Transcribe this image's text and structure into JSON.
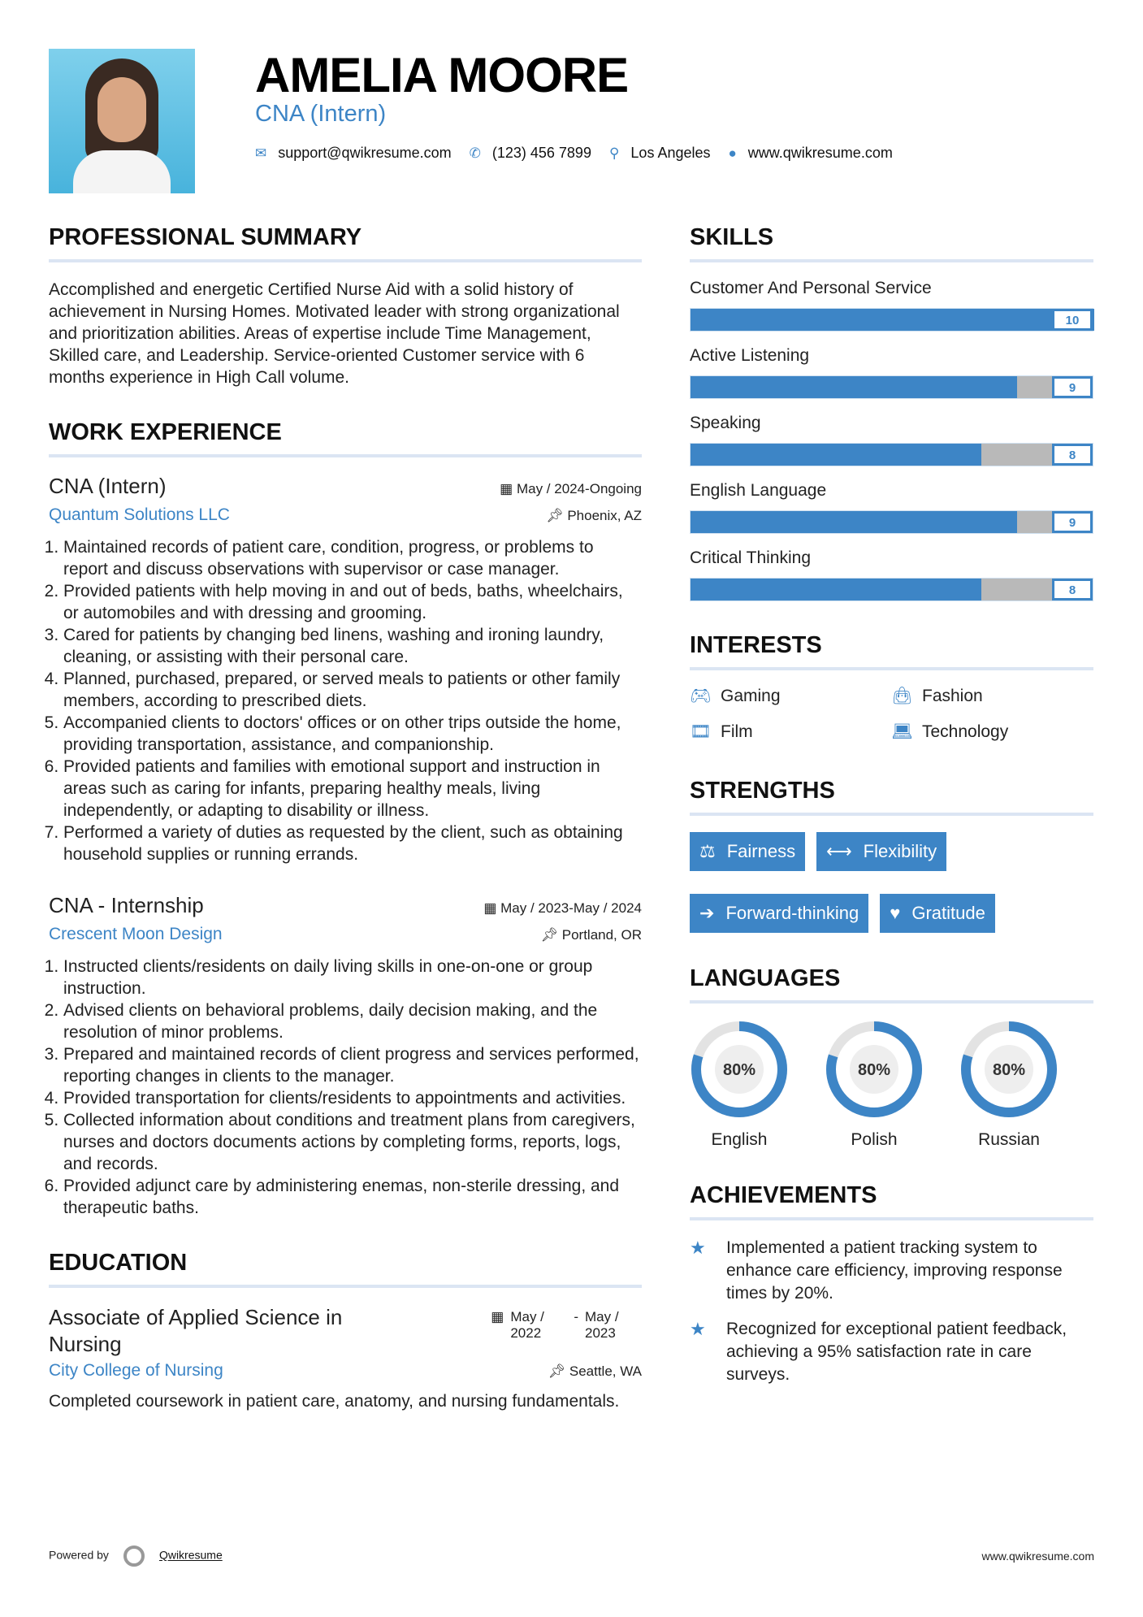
{
  "header": {
    "name": "AMELIA MOORE",
    "role": "CNA (Intern)",
    "email": "support@qwikresume.com",
    "phone": "(123) 456 7899",
    "location": "Los Angeles",
    "website": "www.qwikresume.com"
  },
  "summary": {
    "title": "PROFESSIONAL SUMMARY",
    "text": "Accomplished and energetic Certified Nurse Aid with a solid history of achievement in Nursing Homes. Motivated leader with strong organizational and prioritization abilities. Areas of expertise include Time Management, Skilled care, and Leadership. Service-oriented Customer service with 6 months experience in High Call volume."
  },
  "work": {
    "title": "WORK EXPERIENCE",
    "jobs": [
      {
        "title": "CNA (Intern)",
        "date": "May / 2024-Ongoing",
        "company": "Quantum Solutions LLC",
        "location": "Phoenix, AZ",
        "items": [
          "Maintained records of patient care, condition, progress, or problems to report and discuss observations with supervisor or case manager.",
          "Provided patients with help moving in and out of beds, baths, wheelchairs, or automobiles and with dressing and grooming.",
          "Cared for patients by changing bed linens, washing and ironing laundry, cleaning, or assisting with their personal care.",
          "Planned, purchased, prepared, or served meals to patients or other family members, according to prescribed diets.",
          "Accompanied clients to doctors' offices or on other trips outside the home, providing transportation, assistance, and companionship.",
          "Provided patients and families with emotional support and instruction in areas such as caring for infants, preparing healthy meals, living independently, or adapting to disability or illness.",
          "Performed a variety of duties as requested by the client, such as obtaining household supplies or running errands."
        ]
      },
      {
        "title": "CNA - Internship",
        "date": "May / 2023-May / 2024",
        "company": "Crescent Moon Design",
        "location": "Portland, OR",
        "items": [
          "Instructed clients/residents on daily living skills in one-on-one or group instruction.",
          "Advised clients on behavioral problems, daily decision making, and the resolution of minor problems.",
          "Prepared and maintained records of client progress and services performed, reporting changes in clients to the manager.",
          "Provided transportation for clients/residents to appointments and activities.",
          "Collected information about conditions and treatment plans from caregivers, nurses and doctors documents actions by completing forms, reports, logs, and records.",
          "Provided adjunct care by administering enemas, non-sterile dressing, and therapeutic baths."
        ]
      }
    ]
  },
  "education": {
    "title": "EDUCATION",
    "degree": "Associate of Applied Science in Nursing",
    "start": "May / 2022",
    "end": "May / 2023",
    "school": "City College of Nursing",
    "location": "Seattle, WA",
    "text": "Completed coursework in patient care, anatomy, and nursing fundamentals."
  },
  "skills": {
    "title": "SKILLS",
    "max": 10,
    "items": [
      {
        "name": "Customer And Personal Service",
        "level": 10
      },
      {
        "name": "Active Listening",
        "level": 9
      },
      {
        "name": "Speaking",
        "level": 8
      },
      {
        "name": "English Language",
        "level": 9
      },
      {
        "name": "Critical Thinking",
        "level": 8
      }
    ]
  },
  "interests": {
    "title": "INTERESTS",
    "items": [
      {
        "label": "Gaming",
        "icon": "gamepad-icon"
      },
      {
        "label": "Fashion",
        "icon": "shopping-bag-icon"
      },
      {
        "label": "Film",
        "icon": "film-icon"
      },
      {
        "label": "Technology",
        "icon": "laptop-icon"
      }
    ]
  },
  "strengths": {
    "title": "STRENGTHS",
    "items": [
      {
        "label": "Fairness",
        "icon": "balance-scale-icon"
      },
      {
        "label": "Flexibility",
        "icon": "arrows-h-icon"
      },
      {
        "label": "Forward-thinking",
        "icon": "arrow-right-icon"
      },
      {
        "label": "Gratitude",
        "icon": "heart-icon"
      }
    ]
  },
  "languages": {
    "title": "LANGUAGES",
    "items": [
      {
        "name": "English",
        "percent": 80,
        "label": "80%"
      },
      {
        "name": "Polish",
        "percent": 80,
        "label": "80%"
      },
      {
        "name": "Russian",
        "percent": 80,
        "label": "80%"
      }
    ]
  },
  "achievements": {
    "title": "ACHIEVEMENTS",
    "items": [
      "Implemented a patient tracking system to enhance care efficiency, improving response times by 20%.",
      "Recognized for exceptional patient feedback, achieving a 95% satisfaction rate in care surveys."
    ]
  },
  "footer": {
    "powered": "Powered by",
    "brand": "Qwikresume",
    "site": "www.qwikresume.com"
  },
  "colors": {
    "accent": "#3d85c6",
    "bar_empty": "#b9b9b9"
  }
}
